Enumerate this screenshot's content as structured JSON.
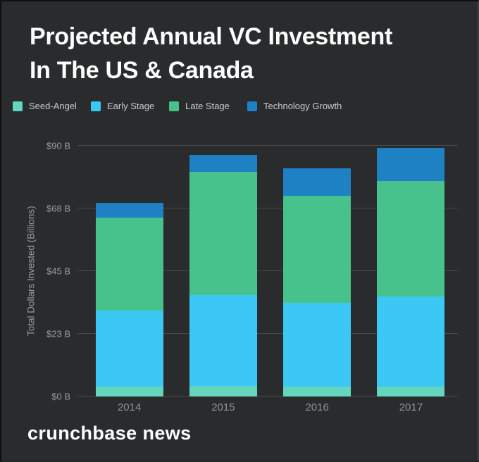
{
  "header": {
    "title": "Projected Annual VC Investment\nIn The US & Canada"
  },
  "footer": {
    "brand": "crunchbase news"
  },
  "colors": {
    "background": "#2a2b2c",
    "title_text": "#ffffff",
    "legend_text": "#c9cccd",
    "axis_text": "#9a9d9e",
    "gridline": "#47494b",
    "seed_angel": "#63d6bd",
    "early_stage": "#3bc8f5",
    "late_stage": "#48c28c",
    "technology_growth": "#1e81c4"
  },
  "chart_data": {
    "type": "bar",
    "stacked": true,
    "title": "Projected Annual VC Investment In The US & Canada",
    "categories": [
      "2014",
      "2015",
      "2016",
      "2017"
    ],
    "series": [
      {
        "name": "Seed-Angel",
        "color": "#63d6bd",
        "values": [
          3.5,
          3.8,
          3.5,
          3.5
        ]
      },
      {
        "name": "Early Stage",
        "color": "#3bc8f5",
        "values": [
          27.3,
          32.6,
          30.1,
          32.4
        ]
      },
      {
        "name": "Late Stage",
        "color": "#48c28c",
        "values": [
          33.4,
          44.2,
          38.4,
          41.5
        ]
      },
      {
        "name": "Technology Growth",
        "color": "#1e81c4",
        "values": [
          5.3,
          6.1,
          9.9,
          11.9
        ]
      }
    ],
    "xlabel": "",
    "ylabel": "Total Dollars Invested (Billions)",
    "ylim": [
      0,
      90
    ],
    "yticks": [
      {
        "label": "$0 B",
        "value": 0
      },
      {
        "label": "$23 B",
        "value": 22.5
      },
      {
        "label": "$45 B",
        "value": 45
      },
      {
        "label": "$68 B",
        "value": 67.5
      },
      {
        "label": "$90 B",
        "value": 90
      }
    ],
    "grid": true,
    "legend_position": "top"
  }
}
